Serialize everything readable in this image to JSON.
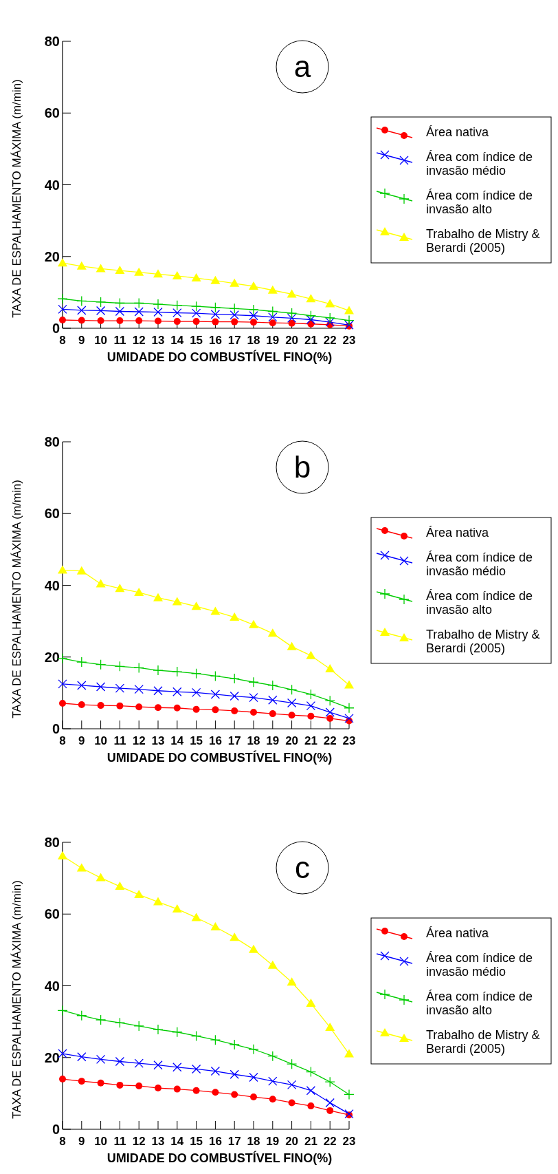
{
  "chart_data": [
    {
      "type": "line",
      "title": "a",
      "xlabel": "UMIDADE DO COMBUSTÍVEL FINO(%)",
      "ylabel": "TAXA DE ESPALHAMENTO MÁXIMA (m/min)",
      "x": [
        8,
        9,
        10,
        11,
        12,
        13,
        14,
        15,
        16,
        17,
        18,
        19,
        20,
        21,
        22,
        23
      ],
      "xlim": [
        8,
        23
      ],
      "xticks": [
        8,
        9,
        10,
        11,
        12,
        13,
        14,
        15,
        16,
        17,
        18,
        19,
        20,
        21,
        22,
        23
      ],
      "ylim": [
        0,
        80
      ],
      "yticks": [
        0,
        20,
        40,
        60,
        80
      ],
      "legend": "right",
      "grid": false,
      "series": [
        {
          "name": "Área nativa",
          "color": "#ff0000",
          "marker": "circle",
          "values": [
            2.3,
            2.2,
            2.1,
            2.1,
            2.1,
            2.0,
            1.9,
            1.9,
            1.8,
            1.8,
            1.7,
            1.5,
            1.4,
            1.2,
            1.0,
            0.6
          ]
        },
        {
          "name": "Área com índice de invasão médio",
          "color": "#0000ff",
          "marker": "cross",
          "values": [
            5.3,
            5.0,
            4.9,
            4.7,
            4.6,
            4.5,
            4.3,
            4.2,
            3.9,
            3.7,
            3.5,
            3.1,
            2.8,
            2.4,
            1.7,
            0.9
          ]
        },
        {
          "name": "Área com índice de invasão alto",
          "color": "#00cc00",
          "marker": "plus",
          "values": [
            8.2,
            7.6,
            7.3,
            7.0,
            7.0,
            6.7,
            6.4,
            6.1,
            5.8,
            5.5,
            5.2,
            4.7,
            4.2,
            3.5,
            2.9,
            2.2
          ]
        },
        {
          "name": "Trabalho de Mistry & Berardi (2005)",
          "color": "#ffff00",
          "marker": "triangle",
          "values": [
            18.2,
            17.3,
            16.6,
            16.1,
            15.6,
            15.1,
            14.6,
            14.0,
            13.3,
            12.5,
            11.7,
            10.6,
            9.5,
            8.2,
            6.8,
            4.9
          ]
        }
      ]
    },
    {
      "type": "line",
      "title": "b",
      "xlabel": "UMIDADE DO COMBUSTÍVEL FINO(%)",
      "ylabel": "TAXA DE ESPALHAMENTO MÁXIMA (m/min)",
      "x": [
        8,
        9,
        10,
        11,
        12,
        13,
        14,
        15,
        16,
        17,
        18,
        19,
        20,
        21,
        22,
        23
      ],
      "xlim": [
        8,
        23
      ],
      "xticks": [
        8,
        9,
        10,
        11,
        12,
        13,
        14,
        15,
        16,
        17,
        18,
        19,
        20,
        21,
        22,
        23
      ],
      "ylim": [
        0,
        80
      ],
      "yticks": [
        0,
        20,
        40,
        60,
        80
      ],
      "legend": "right",
      "grid": false,
      "series": [
        {
          "name": "Área nativa",
          "color": "#ff0000",
          "marker": "circle",
          "values": [
            7.1,
            6.7,
            6.5,
            6.4,
            6.1,
            5.9,
            5.8,
            5.4,
            5.3,
            5.0,
            4.6,
            4.2,
            3.8,
            3.5,
            2.9,
            2.2
          ]
        },
        {
          "name": "Área com índice de invasão médio",
          "color": "#0000ff",
          "marker": "cross",
          "values": [
            12.5,
            12.1,
            11.7,
            11.3,
            11.0,
            10.6,
            10.3,
            10.1,
            9.6,
            9.1,
            8.7,
            8.0,
            7.2,
            6.4,
            4.6,
            2.9
          ]
        },
        {
          "name": "Área com índice de invasão alto",
          "color": "#00cc00",
          "marker": "plus",
          "values": [
            19.6,
            18.6,
            17.9,
            17.4,
            17.0,
            16.3,
            15.9,
            15.4,
            14.7,
            14.0,
            13.0,
            12.1,
            10.9,
            9.6,
            7.8,
            5.8
          ]
        },
        {
          "name": "Trabalho de Mistry & Berardi (2005)",
          "color": "#ffff00",
          "marker": "triangle",
          "values": [
            44.2,
            44.0,
            40.4,
            39.1,
            38.0,
            36.5,
            35.4,
            34.1,
            32.7,
            31.1,
            29.0,
            26.6,
            22.9,
            20.4,
            16.7,
            12.2
          ]
        }
      ]
    },
    {
      "type": "line",
      "title": "c",
      "xlabel": "UMIDADE DO COMBUSTÍVEL FINO(%)",
      "ylabel": "TAXA DE ESPALHAMENTO MÁXIMA (m/min)",
      "x": [
        8,
        9,
        10,
        11,
        12,
        13,
        14,
        15,
        16,
        17,
        18,
        19,
        20,
        21,
        22,
        23
      ],
      "xlim": [
        8,
        23
      ],
      "xticks": [
        8,
        9,
        10,
        11,
        12,
        13,
        14,
        15,
        16,
        17,
        18,
        19,
        20,
        21,
        22,
        23
      ],
      "ylim": [
        0,
        80
      ],
      "yticks": [
        0,
        20,
        40,
        60,
        80
      ],
      "legend": "right",
      "grid": false,
      "series": [
        {
          "name": "Área nativa",
          "color": "#ff0000",
          "marker": "circle",
          "values": [
            14.0,
            13.4,
            12.9,
            12.3,
            12.1,
            11.5,
            11.2,
            10.8,
            10.3,
            9.7,
            9.0,
            8.4,
            7.4,
            6.5,
            5.2,
            4.0
          ]
        },
        {
          "name": "Área com índice de invasão médio",
          "color": "#0000ff",
          "marker": "cross",
          "values": [
            21.1,
            20.2,
            19.5,
            18.9,
            18.4,
            17.9,
            17.3,
            16.8,
            16.2,
            15.3,
            14.5,
            13.4,
            12.4,
            10.8,
            7.4,
            4.3
          ]
        },
        {
          "name": "Área com índice de invasão alto",
          "color": "#00cc00",
          "marker": "plus",
          "values": [
            33.1,
            31.7,
            30.5,
            29.7,
            28.8,
            27.8,
            27.1,
            26.0,
            24.9,
            23.6,
            22.3,
            20.4,
            18.2,
            16.0,
            13.2,
            9.7
          ]
        },
        {
          "name": "Trabalho de Mistry & Berardi (2005)",
          "color": "#ffff00",
          "marker": "triangle",
          "values": [
            76.2,
            72.8,
            70.1,
            67.7,
            65.4,
            63.4,
            61.4,
            59.0,
            56.4,
            53.5,
            50.1,
            45.7,
            41.0,
            35.1,
            28.4,
            21.0
          ]
        }
      ]
    }
  ]
}
